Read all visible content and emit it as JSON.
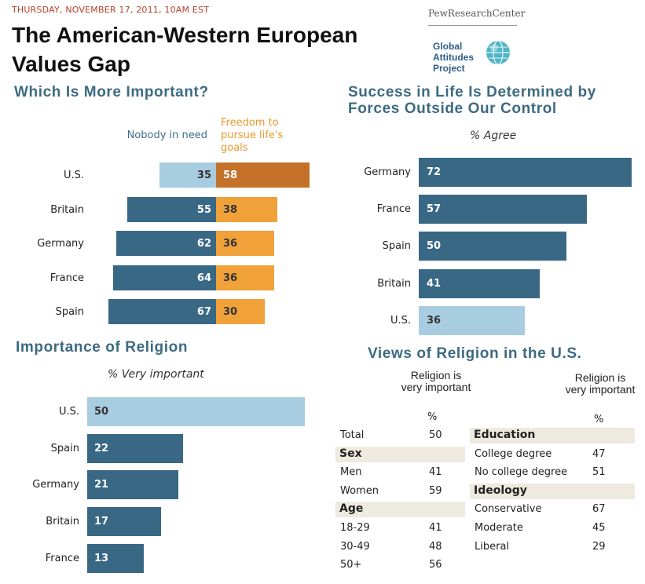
{
  "header": {
    "dateline": "THURSDAY, NOVEMBER 17, 2011, 10AM EST",
    "title": "The American-Western European Values Gap",
    "brand": "PewResearchCenter",
    "project": "Global Attitudes Project"
  },
  "colors": {
    "dark_blue": "#396885",
    "light_blue": "#a8cde0",
    "orange": "#f0a139",
    "dark_orange": "#c4722a",
    "title_blue": "#3d6a82"
  },
  "chart_data": [
    {
      "type": "bar",
      "title": "Which Is More Important?",
      "categories": [
        "U.S.",
        "Britain",
        "Germany",
        "France",
        "Spain"
      ],
      "series": [
        {
          "name": "Nobody in need",
          "values": [
            35,
            55,
            62,
            64,
            67
          ]
        },
        {
          "name": "Freedom to pursue life's goals",
          "values": [
            58,
            38,
            36,
            36,
            30
          ]
        }
      ],
      "highlight": "U.S."
    },
    {
      "type": "bar",
      "title": "Success in Life Is Determined by Forces Outside Our Control",
      "subtitle": "% Agree",
      "categories": [
        "Germany",
        "France",
        "Spain",
        "Britain",
        "U.S."
      ],
      "values": [
        72,
        57,
        50,
        41,
        36
      ],
      "highlight": "U.S."
    },
    {
      "type": "bar",
      "title": "Importance of Religion",
      "subtitle": "% Very important",
      "categories": [
        "U.S.",
        "Spain",
        "Germany",
        "Britain",
        "France"
      ],
      "values": [
        50,
        22,
        21,
        17,
        13
      ],
      "highlight": "U.S."
    },
    {
      "type": "table",
      "title": "Views of Religion in the U.S.",
      "column_header": "Religion is very important",
      "unit": "%",
      "left": [
        {
          "label": "Total",
          "value": "50"
        },
        {
          "group": "Sex"
        },
        {
          "label": "Men",
          "value": "41"
        },
        {
          "label": "Women",
          "value": "59"
        },
        {
          "group": "Age"
        },
        {
          "label": "18-29",
          "value": "41"
        },
        {
          "label": "30-49",
          "value": "48"
        },
        {
          "label": "50+",
          "value": "56"
        }
      ],
      "right": [
        {
          "group": "Education"
        },
        {
          "label": "College degree",
          "value": "47"
        },
        {
          "label": "No college degree",
          "value": "51"
        },
        {
          "group": "Ideology"
        },
        {
          "label": "Conservative",
          "value": "67"
        },
        {
          "label": "Moderate",
          "value": "45"
        },
        {
          "label": "Liberal",
          "value": "29"
        }
      ]
    }
  ]
}
